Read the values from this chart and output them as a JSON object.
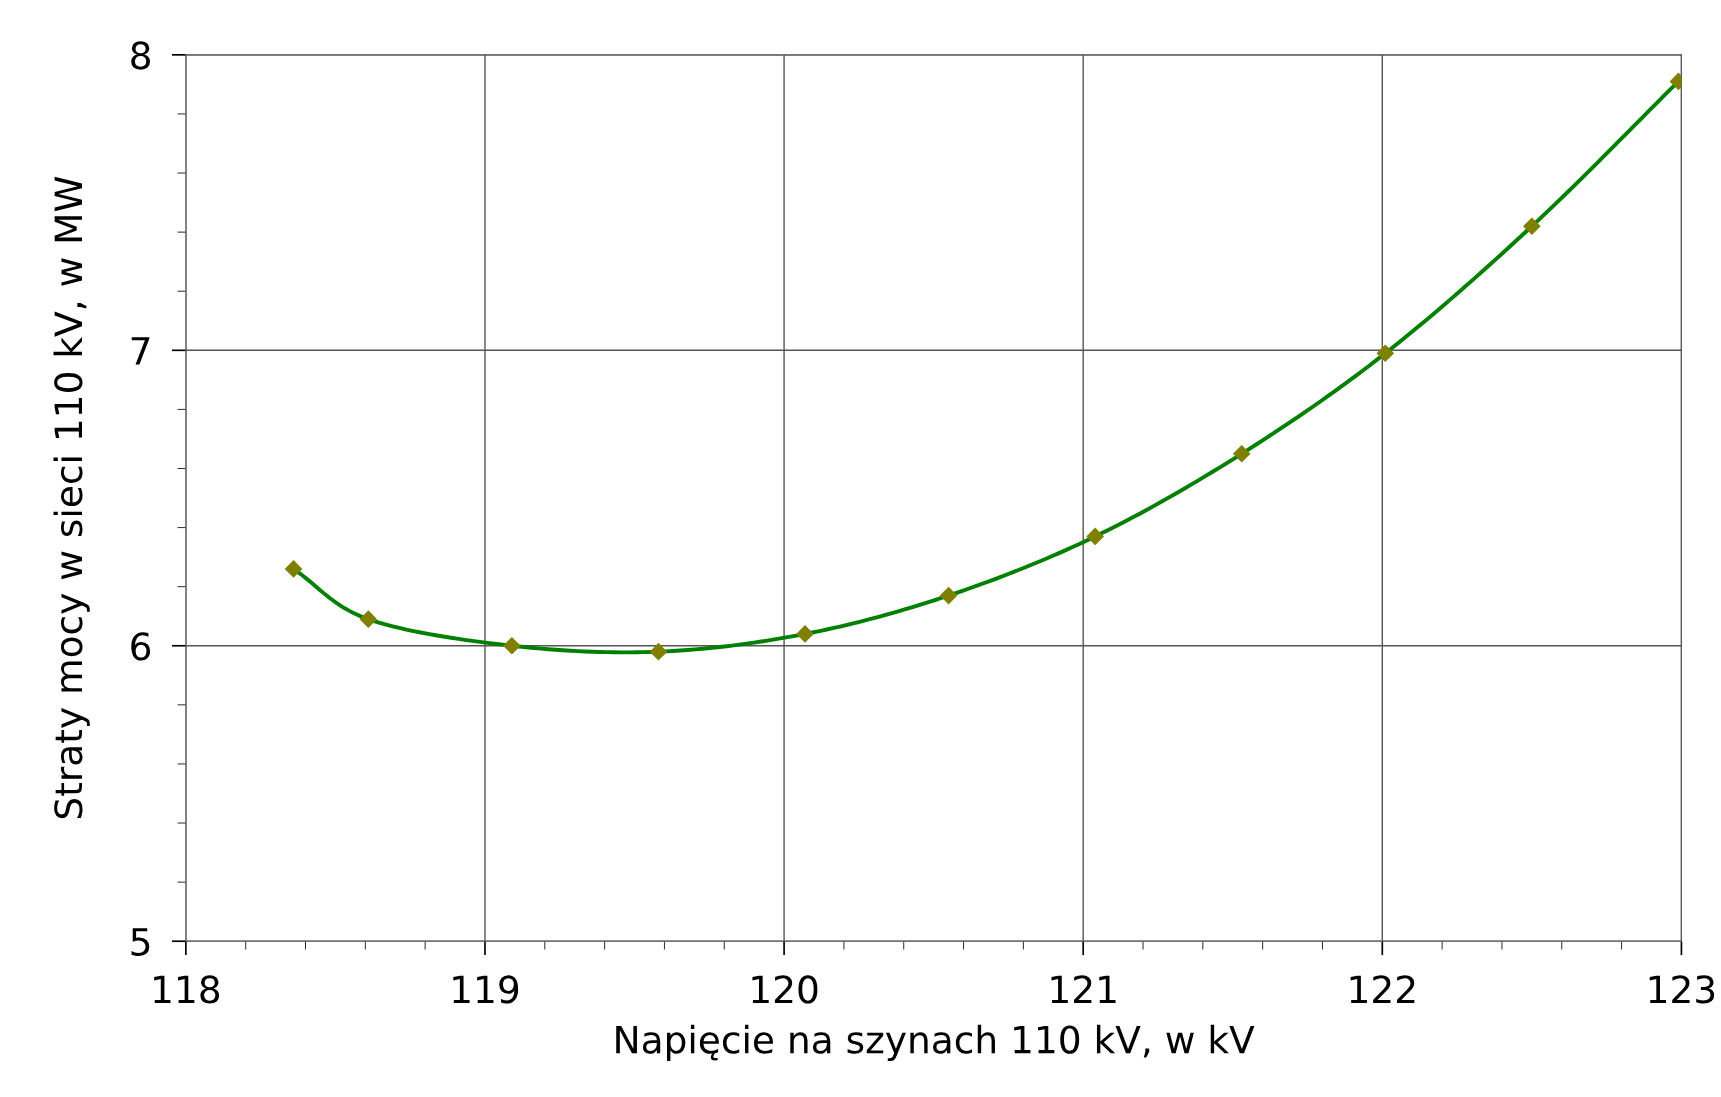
{
  "chart_data": {
    "type": "line",
    "xlabel": "Napięcie na szynach 110 kV, w kV",
    "ylabel": "Straty mocy w sieci 110 kV, w MW",
    "x": [
      118.36,
      118.61,
      119.09,
      119.58,
      120.07,
      120.55,
      121.04,
      121.53,
      122.01,
      122.5,
      122.99
    ],
    "series": [
      {
        "color": "#008000",
        "colors": [
          "#808000",
          "#808000",
          "#808000",
          "#808000",
          "#808000",
          "#808000",
          "#808000",
          "#808000",
          "#808000",
          "#808000",
          "#808000"
        ],
        "values": [
          6.26,
          6.09,
          6.0,
          5.98,
          6.04,
          6.17,
          6.37,
          6.65,
          6.99,
          7.42,
          7.91
        ]
      }
    ],
    "xlim": [
      118,
      123
    ],
    "ylim": [
      5,
      8
    ],
    "xticks": [
      118,
      {
        "value": 118.2,
        "label": null
      },
      {
        "value": 118.4,
        "label": null
      },
      {
        "value": 118.6,
        "label": null
      },
      {
        "value": 118.8,
        "label": null
      },
      119,
      {
        "value": 119.2,
        "label": null
      },
      {
        "value": 119.4,
        "label": null
      },
      {
        "value": 119.6,
        "label": null
      },
      {
        "value": 119.8,
        "label": null
      },
      120,
      {
        "value": 120.2,
        "label": null
      },
      {
        "value": 120.4,
        "label": null
      },
      {
        "value": 120.6,
        "label": null
      },
      {
        "value": 120.8,
        "label": null
      },
      121,
      {
        "value": 121.2,
        "label": null
      },
      {
        "value": 121.4,
        "label": null
      },
      {
        "value": 121.6,
        "label": null
      },
      {
        "value": 121.8,
        "label": null
      },
      122,
      {
        "value": 122.2,
        "label": null
      },
      {
        "value": 122.4,
        "label": null
      },
      {
        "value": 122.6,
        "label": null
      },
      {
        "value": 122.8,
        "label": null
      },
      123
    ],
    "yticks": [
      5,
      {
        "value": 5.2,
        "label": null
      },
      {
        "value": 5.4,
        "label": null
      },
      {
        "value": 5.6,
        "label": null
      },
      {
        "value": 5.8,
        "label": null
      },
      6,
      {
        "value": 6.2,
        "label": null
      },
      {
        "value": 6.4,
        "label": null
      },
      {
        "value": 6.6,
        "label": null
      },
      {
        "value": 6.8,
        "label": null
      },
      7,
      {
        "value": 7.2,
        "label": null
      },
      {
        "value": 7.4,
        "label": null
      },
      {
        "value": 7.6,
        "label": null
      },
      {
        "value": 7.8,
        "label": null
      },
      8
    ],
    "grid": true,
    "marker": "diamond",
    "line_style": "solid",
    "legend": false
  }
}
